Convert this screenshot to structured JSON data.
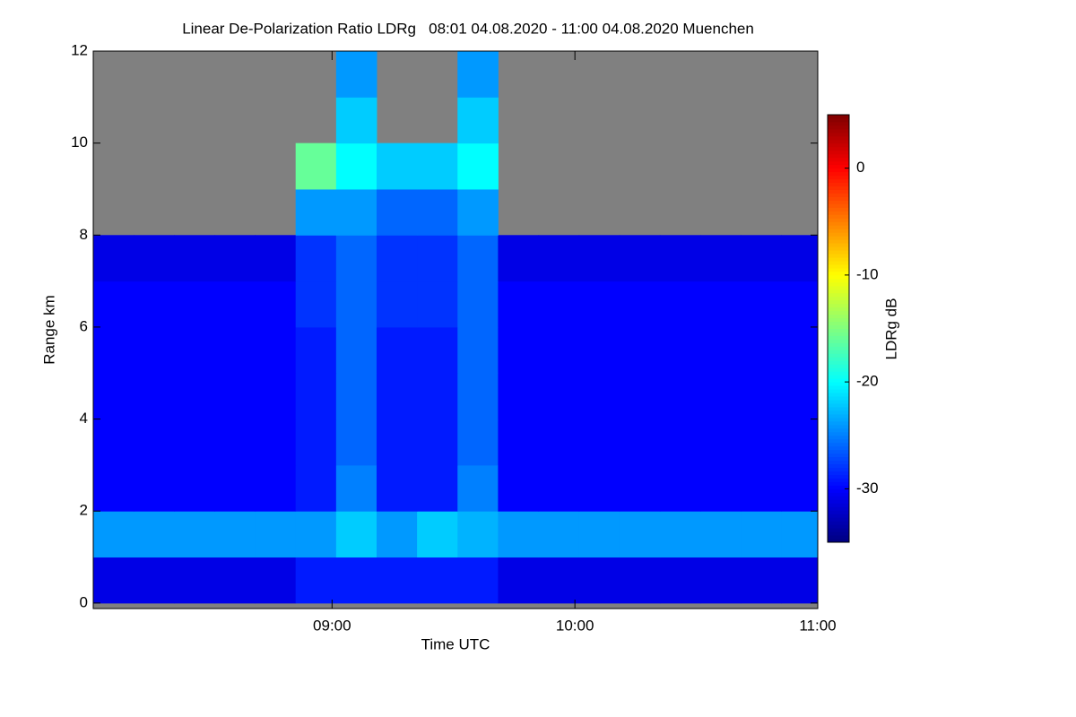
{
  "chart_data": {
    "type": "heatmap",
    "title": "Linear De-Polarization Ratio LDRg   08:01 04.08.2020 - 11:00 04.08.2020 Muenchen",
    "x_label": "Time UTC",
    "y_label": "Range km",
    "colorbar_label": "LDRg dB",
    "colormap": "jet",
    "missing_color": "#808080",
    "x": [
      6,
      16,
      26,
      36,
      46,
      56,
      66,
      76,
      86,
      96,
      106,
      116,
      126,
      136,
      146,
      156,
      166,
      176
    ],
    "y": [
      0.5,
      1.5,
      2.5,
      3.5,
      4.5,
      5.5,
      6.5,
      7.5,
      8.5,
      9.5,
      10.5,
      11.5
    ],
    "values": [
      [
        -31,
        -31,
        -31,
        -31,
        -31,
        -29,
        -29,
        -29,
        -29,
        -29,
        -31,
        -31,
        -31,
        -31,
        -31,
        -31,
        -31,
        -31
      ],
      [
        -24,
        -24,
        -24,
        -24,
        -24,
        -24,
        -22,
        -24,
        -22,
        -23,
        -24,
        -24,
        -24,
        -24,
        -24,
        -24,
        -24,
        -24
      ],
      [
        -30,
        -30,
        -30,
        -30,
        -30,
        -29,
        -25,
        -29,
        -29,
        -25,
        -30,
        -30,
        -30,
        -30,
        -30,
        -30,
        -30,
        -30
      ],
      [
        -30,
        -30,
        -30,
        -30,
        -30,
        -29,
        -26,
        -29,
        -29,
        -26,
        -30,
        -30,
        -30,
        -30,
        -30,
        -30,
        -30,
        -30
      ],
      [
        -30,
        -30,
        -30,
        -30,
        -30,
        -29,
        -26,
        -29,
        -29,
        -26,
        -30,
        -30,
        -30,
        -30,
        -30,
        -30,
        -30,
        -30
      ],
      [
        -30,
        -30,
        -30,
        -30,
        -30,
        -29,
        -26,
        -29,
        -29,
        -26,
        -30,
        -30,
        -30,
        -30,
        -30,
        -30,
        -30,
        -30
      ],
      [
        -30,
        -30,
        -30,
        -30,
        -30,
        -28,
        -26,
        -28,
        -28,
        -26,
        -30,
        -30,
        -30,
        -30,
        -30,
        -30,
        -30,
        -30
      ],
      [
        -31,
        -31,
        -31,
        -31,
        -31,
        -28,
        -26,
        -28,
        -28,
        -26,
        -31,
        -31,
        -31,
        -31,
        -31,
        -31,
        -31,
        -31
      ],
      [
        null,
        null,
        null,
        null,
        null,
        -24,
        -24,
        -26,
        -26,
        -24,
        null,
        null,
        null,
        null,
        null,
        null,
        null,
        null
      ],
      [
        null,
        null,
        null,
        null,
        null,
        -16,
        -20,
        -22,
        -22,
        -20,
        null,
        null,
        null,
        null,
        null,
        null,
        null,
        null
      ],
      [
        null,
        null,
        null,
        null,
        null,
        null,
        -22,
        null,
        null,
        -22,
        null,
        null,
        null,
        null,
        null,
        null,
        null,
        null
      ],
      [
        null,
        null,
        null,
        null,
        null,
        null,
        -24,
        null,
        null,
        -24,
        null,
        null,
        null,
        null,
        null,
        null,
        null,
        null
      ]
    ],
    "xlim": [
      1,
      180
    ],
    "ylim": [
      -0.12,
      12
    ],
    "clim": [
      -35,
      5
    ],
    "xticks": [
      {
        "value": 60,
        "label": "09:00"
      },
      {
        "value": 120,
        "label": "10:00"
      },
      {
        "value": 180,
        "label": "11:00"
      }
    ],
    "yticks": [
      0,
      2,
      4,
      6,
      8,
      10,
      12
    ],
    "cticks": [
      0,
      -10,
      -20,
      -30
    ]
  }
}
